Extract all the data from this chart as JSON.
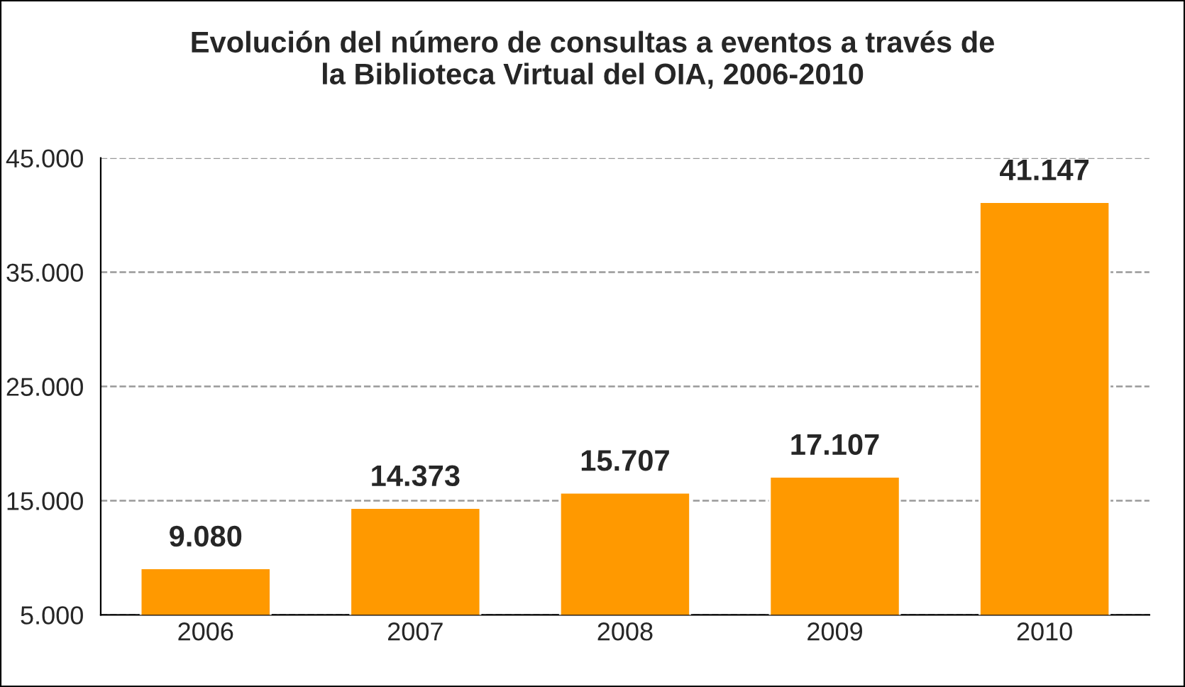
{
  "chart_data": {
    "type": "bar",
    "title": "Evolución del número de consultas a eventos a través de\nla Biblioteca Virtual del OIA, 2006-2010",
    "categories": [
      "2006",
      "2007",
      "2008",
      "2009",
      "2010"
    ],
    "values": [
      9080,
      14373,
      15707,
      17107,
      41147
    ],
    "value_labels": [
      "9.080",
      "14.373",
      "15.707",
      "17.107",
      "41.147"
    ],
    "color": "#ff9900",
    "ylim": [
      5000,
      45000
    ],
    "yticks": [
      {
        "value": 5000,
        "label": "5.000"
      },
      {
        "value": 15000,
        "label": "15.000"
      },
      {
        "value": 25000,
        "label": "25.000"
      },
      {
        "value": 35000,
        "label": "35.000"
      },
      {
        "value": 45000,
        "label": "45.000"
      }
    ],
    "grid": "y",
    "line_style": "dashed",
    "legend": false
  }
}
